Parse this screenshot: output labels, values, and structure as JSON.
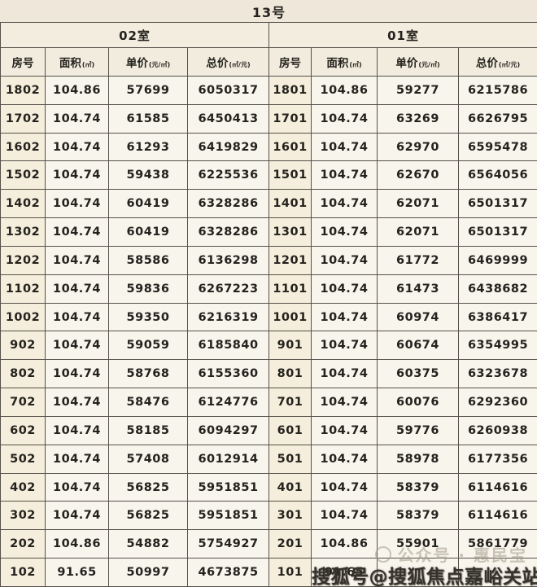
{
  "title": "13号",
  "table": {
    "units": [
      {
        "name": "02室",
        "headers": [
          {
            "label": "房号",
            "unit": ""
          },
          {
            "label": "面积",
            "unit": "(㎡)"
          },
          {
            "label": "单价",
            "unit": "(元/㎡)"
          },
          {
            "label": "总价",
            "unit": "(㎡/元)"
          }
        ],
        "rows": [
          [
            "1802",
            "104.86",
            "57699",
            "6050317"
          ],
          [
            "1702",
            "104.74",
            "61585",
            "6450413"
          ],
          [
            "1602",
            "104.74",
            "61293",
            "6419829"
          ],
          [
            "1502",
            "104.74",
            "59438",
            "6225536"
          ],
          [
            "1402",
            "104.74",
            "60419",
            "6328286"
          ],
          [
            "1302",
            "104.74",
            "60419",
            "6328286"
          ],
          [
            "1202",
            "104.74",
            "58586",
            "6136298"
          ],
          [
            "1102",
            "104.74",
            "59836",
            "6267223"
          ],
          [
            "1002",
            "104.74",
            "59350",
            "6216319"
          ],
          [
            "902",
            "104.74",
            "59059",
            "6185840"
          ],
          [
            "802",
            "104.74",
            "58768",
            "6155360"
          ],
          [
            "702",
            "104.74",
            "58476",
            "6124776"
          ],
          [
            "602",
            "104.74",
            "58185",
            "6094297"
          ],
          [
            "502",
            "104.74",
            "57408",
            "6012914"
          ],
          [
            "402",
            "104.74",
            "56825",
            "5951851"
          ],
          [
            "302",
            "104.74",
            "56825",
            "5951851"
          ],
          [
            "202",
            "104.86",
            "54882",
            "5754927"
          ],
          [
            "102",
            "91.65",
            "50997",
            "4673875"
          ]
        ]
      },
      {
        "name": "01室",
        "headers": [
          {
            "label": "房号",
            "unit": ""
          },
          {
            "label": "面积",
            "unit": "(㎡)"
          },
          {
            "label": "单价",
            "unit": "(元/㎡)"
          },
          {
            "label": "总价",
            "unit": "(㎡/元)"
          }
        ],
        "rows": [
          [
            "1801",
            "104.86",
            "59277",
            "6215786"
          ],
          [
            "1701",
            "104.74",
            "63269",
            "6626795"
          ],
          [
            "1601",
            "104.74",
            "62970",
            "6595478"
          ],
          [
            "1501",
            "104.74",
            "62670",
            "6564056"
          ],
          [
            "1401",
            "104.74",
            "62071",
            "6501317"
          ],
          [
            "1301",
            "104.74",
            "62071",
            "6501317"
          ],
          [
            "1201",
            "104.74",
            "61772",
            "6469999"
          ],
          [
            "1101",
            "104.74",
            "61473",
            "6438682"
          ],
          [
            "1001",
            "104.74",
            "60974",
            "6386417"
          ],
          [
            "901",
            "104.74",
            "60674",
            "6354995"
          ],
          [
            "801",
            "104.74",
            "60375",
            "6323678"
          ],
          [
            "701",
            "104.74",
            "60076",
            "6292360"
          ],
          [
            "601",
            "104.74",
            "59776",
            "6260938"
          ],
          [
            "501",
            "104.74",
            "58978",
            "6177356"
          ],
          [
            "401",
            "104.74",
            "58379",
            "6114616"
          ],
          [
            "301",
            "104.74",
            "58379",
            "6114616"
          ],
          [
            "201",
            "104.86",
            "55901",
            "5861779"
          ],
          [
            "101",
            "91.65",
            "",
            ""
          ]
        ]
      }
    ]
  },
  "watermarks": {
    "faint": "公众号 · 惠民宝",
    "dark": "搜狐号@搜狐焦点嘉峪关站"
  },
  "colors": {
    "background": "#efe8da",
    "cell": "#f8f5ed",
    "room_cell": "#f5eedc",
    "border": "#56514a",
    "text": "#24221d",
    "watermark_dark": "#35322c",
    "watermark_faint": "#a39b8a"
  }
}
